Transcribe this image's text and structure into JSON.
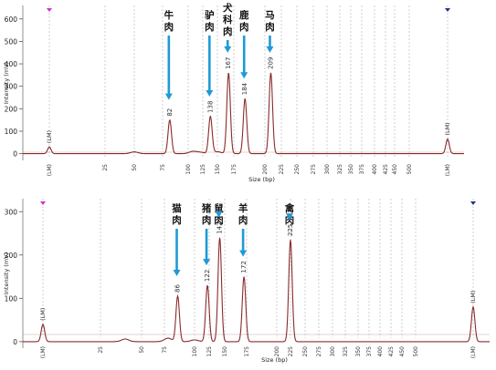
{
  "chart_data": [
    {
      "type": "line",
      "ylabel": "Intensity (mV)",
      "xlabel": "Size (bp)",
      "ylim": [
        -30,
        660
      ],
      "yticks": [
        0,
        100,
        200,
        300,
        400,
        500,
        600
      ],
      "xrange": [
        -20,
        700
      ],
      "x_ticks": [
        {
          "x": 0,
          "label": "(LM)"
        },
        {
          "x": 25,
          "label": "25"
        },
        {
          "x": 50,
          "label": "50"
        },
        {
          "x": 75,
          "label": "75"
        },
        {
          "x": 100,
          "label": "100"
        },
        {
          "x": 125,
          "label": "125"
        },
        {
          "x": 150,
          "label": "150"
        },
        {
          "x": 175,
          "label": "175"
        },
        {
          "x": 200,
          "label": "200"
        },
        {
          "x": 225,
          "label": "225"
        },
        {
          "x": 250,
          "label": "250"
        },
        {
          "x": 275,
          "label": "275"
        },
        {
          "x": 300,
          "label": "300"
        },
        {
          "x": 325,
          "label": "325"
        },
        {
          "x": 350,
          "label": "350"
        },
        {
          "x": 375,
          "label": "375"
        },
        {
          "x": 400,
          "label": "400"
        },
        {
          "x": 425,
          "label": "425"
        },
        {
          "x": 450,
          "label": "450"
        },
        {
          "x": 500,
          "label": "500"
        },
        {
          "x": 680,
          "label": "(LM)"
        }
      ],
      "peaks": [
        {
          "x": 0,
          "height": 30,
          "label": "(LM)"
        },
        {
          "x": 82,
          "height": 150,
          "label": "82",
          "species": "牛肉"
        },
        {
          "x": 138,
          "height": 165,
          "label": "138",
          "species": "驴肉"
        },
        {
          "x": 167,
          "height": 360,
          "label": "167",
          "species": "犬科肉"
        },
        {
          "x": 184,
          "height": 245,
          "label": "184",
          "species": "鹿肉"
        },
        {
          "x": 209,
          "height": 360,
          "label": "209",
          "species": "马肉"
        },
        {
          "x": 680,
          "height": 65,
          "label": "(LM)"
        }
      ],
      "markers": [
        {
          "x": 0,
          "color": "#cc33cc"
        },
        {
          "x": 680,
          "color": "#223388"
        }
      ]
    },
    {
      "type": "line",
      "ylabel": "Intensity (mV)",
      "xlabel": "Size (bp)",
      "ylim": [
        -15,
        330
      ],
      "yticks": [
        0,
        100,
        200,
        300
      ],
      "xrange": [
        -20,
        700
      ],
      "x_ticks": [
        {
          "x": 0,
          "label": "(LM)"
        },
        {
          "x": 25,
          "label": "25"
        },
        {
          "x": 50,
          "label": "50"
        },
        {
          "x": 75,
          "label": "75"
        },
        {
          "x": 100,
          "label": "100"
        },
        {
          "x": 125,
          "label": "125"
        },
        {
          "x": 150,
          "label": "150"
        },
        {
          "x": 175,
          "label": "175"
        },
        {
          "x": 200,
          "label": "200"
        },
        {
          "x": 225,
          "label": "225"
        },
        {
          "x": 250,
          "label": "250"
        },
        {
          "x": 275,
          "label": "275"
        },
        {
          "x": 300,
          "label": "300"
        },
        {
          "x": 325,
          "label": "325"
        },
        {
          "x": 350,
          "label": "350"
        },
        {
          "x": 375,
          "label": "375"
        },
        {
          "x": 400,
          "label": "400"
        },
        {
          "x": 425,
          "label": "425"
        },
        {
          "x": 450,
          "label": "450"
        },
        {
          "x": 500,
          "label": "500"
        },
        {
          "x": 680,
          "label": "(LM)"
        }
      ],
      "peaks": [
        {
          "x": 0,
          "height": 40,
          "label": "(LM)"
        },
        {
          "x": 86,
          "height": 105,
          "label": "86",
          "species": "猫肉"
        },
        {
          "x": 122,
          "height": 130,
          "label": "122",
          "species": "猪肉"
        },
        {
          "x": 142,
          "height": 240,
          "label": "142",
          "species": "鼠肉"
        },
        {
          "x": 172,
          "height": 150,
          "label": "172",
          "species": "羊肉"
        },
        {
          "x": 225,
          "height": 235,
          "label": "225",
          "species": "禽肉"
        },
        {
          "x": 680,
          "height": 80,
          "label": "(LM)"
        }
      ],
      "markers": [
        {
          "x": 0,
          "color": "#cc33cc"
        },
        {
          "x": 680,
          "color": "#223388"
        }
      ]
    }
  ]
}
